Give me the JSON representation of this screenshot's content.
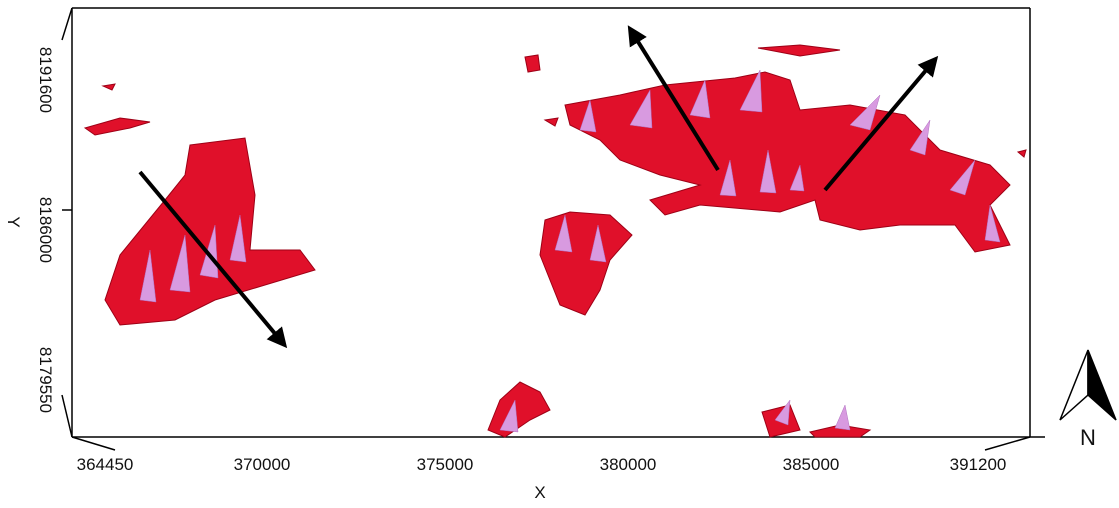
{
  "axes": {
    "x": {
      "label": "X",
      "ticks": [
        "364450",
        "370000",
        "375000",
        "380000",
        "385000",
        "391200"
      ]
    },
    "y": {
      "label": "Y",
      "ticks": [
        "8191600",
        "8186000",
        "8179550"
      ]
    }
  },
  "north_label": "N"
}
